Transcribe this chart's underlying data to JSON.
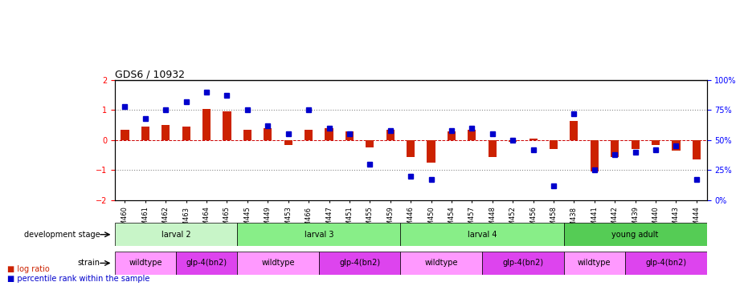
{
  "title": "GDS6 / 10932",
  "samples": [
    "GSM460",
    "GSM461",
    "GSM462",
    "GSM463",
    "GSM464",
    "GSM465",
    "GSM445",
    "GSM449",
    "GSM453",
    "GSM466",
    "GSM447",
    "GSM451",
    "GSM455",
    "GSM459",
    "GSM446",
    "GSM450",
    "GSM454",
    "GSM457",
    "GSM448",
    "GSM452",
    "GSM456",
    "GSM458",
    "GSM438",
    "GSM441",
    "GSM442",
    "GSM439",
    "GSM440",
    "GSM443",
    "GSM444"
  ],
  "log_ratio": [
    0.35,
    0.45,
    0.5,
    0.45,
    1.05,
    0.95,
    0.35,
    0.4,
    -0.15,
    0.35,
    0.4,
    0.3,
    -0.25,
    0.35,
    -0.55,
    -0.75,
    0.3,
    0.35,
    -0.55,
    -0.05,
    0.05,
    -0.3,
    0.65,
    -1.05,
    -0.55,
    -0.3,
    -0.15,
    -0.35,
    -0.65
  ],
  "percentile": [
    78,
    68,
    75,
    82,
    90,
    87,
    75,
    62,
    55,
    75,
    60,
    55,
    30,
    58,
    20,
    17,
    58,
    60,
    55,
    50,
    42,
    12,
    72,
    25,
    38,
    40,
    42,
    45,
    17
  ],
  "dev_stages": [
    {
      "label": "larval 2",
      "start": 0,
      "end": 5,
      "color": "#aaffaa"
    },
    {
      "label": "larval 3",
      "start": 6,
      "end": 13,
      "color": "#66dd66"
    },
    {
      "label": "larval 4",
      "start": 14,
      "end": 21,
      "color": "#66dd66"
    },
    {
      "label": "young adult",
      "start": 22,
      "end": 28,
      "color": "#44cc44"
    }
  ],
  "strains": [
    {
      "label": "wildtype",
      "start": 0,
      "end": 2,
      "color": "#ff88ff"
    },
    {
      "label": "glp-4(bn2)",
      "start": 3,
      "end": 5,
      "color": "#dd44dd"
    },
    {
      "label": "wildtype",
      "start": 6,
      "end": 9,
      "color": "#ff88ff"
    },
    {
      "label": "glp-4(bn2)",
      "start": 10,
      "end": 13,
      "color": "#dd44dd"
    },
    {
      "label": "wildtype",
      "start": 14,
      "end": 17,
      "color": "#ff88ff"
    },
    {
      "label": "glp-4(bn2)",
      "start": 18,
      "end": 21,
      "color": "#dd44dd"
    },
    {
      "label": "wildtype",
      "start": 22,
      "end": 24,
      "color": "#ff88ff"
    },
    {
      "label": "glp-4(bn2)",
      "start": 25,
      "end": 28,
      "color": "#dd44dd"
    }
  ],
  "ylim": [
    -2,
    2
  ],
  "y2lim": [
    0,
    100
  ],
  "bar_color": "#cc2200",
  "dot_color": "#0000cc",
  "zero_line_color": "#cc0000",
  "grid_color": "#888888",
  "dev_stage_colors": [
    "#bbffbb",
    "#88ee88",
    "#88ee88",
    "#55cc55"
  ],
  "strain_colors_wt": "#ff99ff",
  "strain_colors_glp": "#ee55ee",
  "left_label_dev": "development stage",
  "left_label_strain": "strain",
  "legend_bar": "log ratio",
  "legend_dot": "percentile rank within the sample"
}
